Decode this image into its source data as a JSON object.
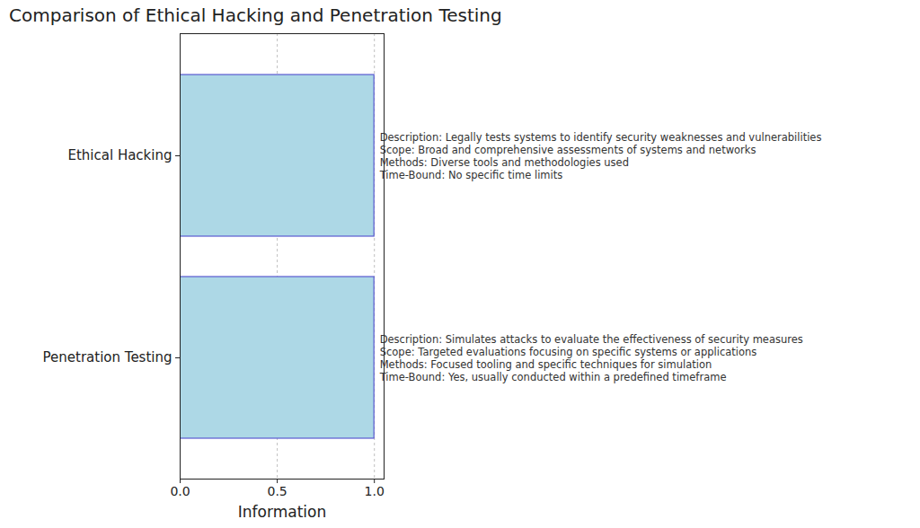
{
  "chart_data": {
    "type": "bar",
    "orientation": "horizontal",
    "title": "Comparison of Ethical Hacking and Penetration Testing",
    "xlabel": "Information",
    "categories": [
      "Ethical Hacking",
      "Penetration Testing"
    ],
    "values": [
      1.0,
      1.0
    ],
    "color": "#add8e6",
    "xlim": [
      0,
      1.05
    ],
    "xticks": [
      {
        "value": 0,
        "label": "0.0"
      },
      {
        "value": 0.5,
        "label": "0.5"
      },
      {
        "value": 1.0,
        "label": "1.0"
      }
    ],
    "grid": true,
    "annotations": [
      {
        "category": "Ethical Hacking",
        "lines": [
          "Description: Legally tests systems to identify security weaknesses and vulnerabilities",
          "Scope: Broad and comprehensive assessments of systems and networks",
          "Methods: Diverse tools and methodologies used",
          "Time-Bound: No specific time limits"
        ]
      },
      {
        "category": "Penetration Testing",
        "lines": [
          "Description: Simulates attacks to evaluate the effectiveness of security measures",
          "Scope: Targeted evaluations focusing on specific systems or applications",
          "Methods: Focused tooling and specific techniques for simulation",
          "Time-Bound: Yes, usually conducted within a predefined timeframe"
        ]
      }
    ]
  }
}
